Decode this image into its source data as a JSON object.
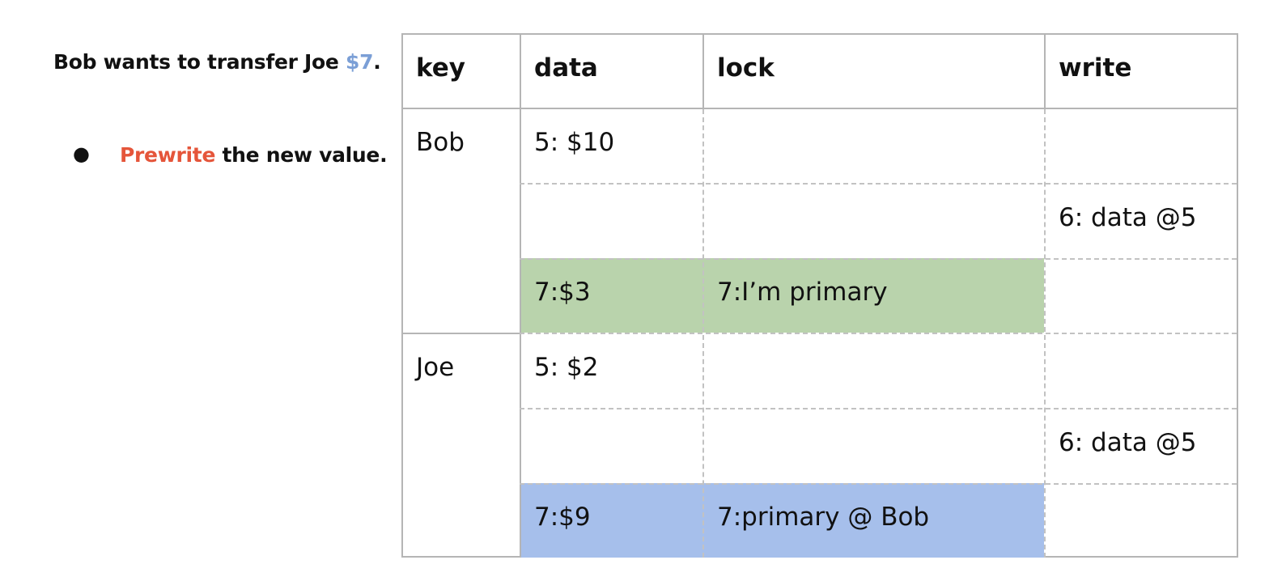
{
  "slide": {
    "headline_prefix": "Bob wants to transfer Joe ",
    "headline_amount": "$7",
    "headline_suffix": ".",
    "bullet_marker": "●",
    "bullet_verb": "Prewrite",
    "bullet_rest": " the new value",
    "bullet_suffix": "."
  },
  "table": {
    "headers": [
      "key",
      "data",
      "lock",
      "write"
    ],
    "rows": [
      {
        "key": "Bob",
        "data": "5: $10",
        "lock": "",
        "write": ""
      },
      {
        "key": "",
        "data": "",
        "lock": "",
        "write": "6: data @5"
      },
      {
        "key": "",
        "data": "7:$3",
        "lock": "7:I’m primary",
        "write": ""
      },
      {
        "key": "Joe",
        "data": "5: $2",
        "lock": "",
        "write": ""
      },
      {
        "key": "",
        "data": "",
        "lock": "",
        "write": "6: data @5"
      },
      {
        "key": "",
        "data": "7:$9",
        "lock": "7:primary @ Bob",
        "write": ""
      }
    ]
  },
  "colors": {
    "amount": "#7b9fd6",
    "verb": "#e5553a",
    "bob_prewrite_row": "#b9d3ac",
    "joe_prewrite_row": "#a6bfeb"
  }
}
